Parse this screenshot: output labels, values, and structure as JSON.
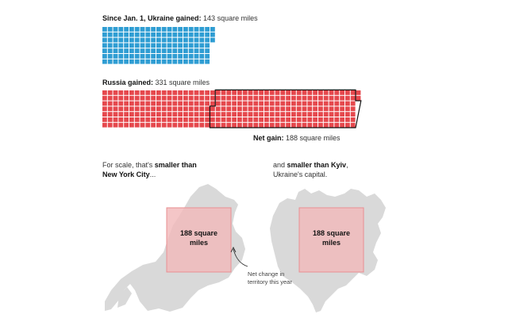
{
  "ukraine": {
    "label_bold": "Since Jan. 1, Ukraine gained:",
    "label_rest": " 143 square miles"
  },
  "russia": {
    "label_bold": "Russia gained:",
    "label_rest": " 331 square miles"
  },
  "net": {
    "label_bold": "Net gain:",
    "label_rest": " 188 square miles"
  },
  "nyc": {
    "line1_plain": "For scale, that's ",
    "line1_bold": "smaller than",
    "line2_bold": "New York City",
    "line2_rest": "..."
  },
  "kyiv": {
    "line1_plain": "and ",
    "line1_bold": "smaller than Kyiv",
    "line1_rest": ",",
    "line2": "Ukraine's capital."
  },
  "box": {
    "line1": "188 square",
    "line2": "miles"
  },
  "annotation": {
    "line1": "Net change in",
    "line2": "territory this year"
  },
  "colors": {
    "ukraine": "#2f9dd3",
    "russia": "#e5484d",
    "land": "#d9d9d9",
    "box_fill": "#f2b9bb",
    "box_stroke": "#e98f92"
  },
  "chart_data": {
    "type": "waffle",
    "unit": "square miles",
    "series": [
      {
        "name": "Ukraine gained",
        "value": 143
      },
      {
        "name": "Russia gained",
        "value": 331
      },
      {
        "name": "Net gain",
        "value": 188
      }
    ]
  }
}
